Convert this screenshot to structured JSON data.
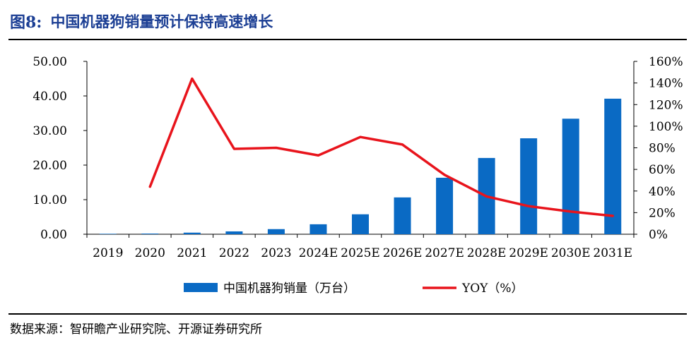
{
  "figure": {
    "label": "图8:",
    "title": "中国机器狗销量预计保持高速增长",
    "source": "数据来源：智研瞻产业研究院、开源证券研究所"
  },
  "colors": {
    "title": "#1c3f94",
    "bar": "#0a6ac4",
    "line": "#e8141c"
  },
  "chart_data": {
    "type": "bar",
    "categories": [
      "2019",
      "2020",
      "2021",
      "2022",
      "2023",
      "2024E",
      "2025E",
      "2026E",
      "2027E",
      "2028E",
      "2029E",
      "2030E",
      "2031E"
    ],
    "series": [
      {
        "name": "中国机器狗销量（万台）",
        "type": "bar",
        "axis": "left",
        "values": [
          0.13,
          0.19,
          0.46,
          0.82,
          1.48,
          2.88,
          5.77,
          10.65,
          16.34,
          22.06,
          27.75,
          33.42,
          39.21
        ]
      },
      {
        "name": "YOY（%）",
        "type": "line",
        "axis": "right",
        "values": [
          null,
          0.44,
          1.44,
          0.79,
          0.8,
          0.73,
          0.9,
          0.83,
          0.55,
          0.35,
          0.26,
          0.21,
          0.17
        ]
      }
    ],
    "yaxis_left": {
      "ylim": [
        0,
        50
      ],
      "ticks": [
        "0.00",
        "10.00",
        "20.00",
        "30.00",
        "40.00",
        "50.00"
      ]
    },
    "yaxis_right": {
      "ylim": [
        0,
        1.6
      ],
      "ticks": [
        "0%",
        "20%",
        "40%",
        "60%",
        "80%",
        "100%",
        "120%",
        "140%",
        "160%"
      ]
    },
    "grid": false,
    "legend": "bottom-center"
  }
}
